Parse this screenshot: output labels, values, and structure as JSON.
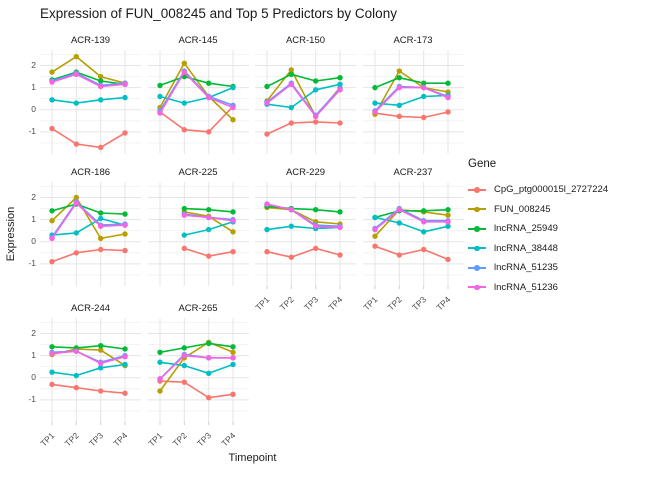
{
  "chart_data": {
    "type": "line",
    "title": "Expression of FUN_008245 and Top 5 Predictors by Colony",
    "xlabel": "Timepoint",
    "ylabel": "Expression",
    "legend_title": "Gene",
    "x_categories": [
      "TP1",
      "TP2",
      "TP3",
      "TP4"
    ],
    "y_ticks": [
      2,
      1,
      0,
      -1
    ],
    "ylim": [
      -2.0,
      2.7
    ],
    "grid": true,
    "legend_position": "right",
    "genes": [
      {
        "label": "CpG_ptg000015l_2727224",
        "color": "#F8766D"
      },
      {
        "label": "FUN_008245",
        "color": "#B79F00"
      },
      {
        "label": "lncRNA_25949",
        "color": "#00BA38"
      },
      {
        "label": "lncRNA_38448",
        "color": "#00BFC4"
      },
      {
        "label": "lncRNA_51235",
        "color": "#619CFF"
      },
      {
        "label": "lncRNA_51236",
        "color": "#F564E3"
      }
    ],
    "facets": [
      {
        "label": "ACR-139",
        "values": [
          [
            -0.85,
            -1.55,
            -1.7,
            -1.05
          ],
          [
            1.7,
            2.4,
            1.5,
            1.2
          ],
          [
            1.35,
            1.7,
            1.3,
            1.15
          ],
          [
            0.45,
            0.3,
            0.45,
            0.55
          ],
          [
            1.3,
            1.65,
            1.1,
            1.2
          ],
          [
            1.25,
            1.6,
            1.05,
            1.15
          ]
        ]
      },
      {
        "label": "ACR-145",
        "values": [
          [
            -0.1,
            -0.9,
            -1.0,
            0.15
          ],
          [
            0.1,
            2.1,
            0.6,
            -0.45
          ],
          [
            1.1,
            1.5,
            1.2,
            1.05
          ],
          [
            0.6,
            0.3,
            0.55,
            1.0
          ],
          [
            -0.05,
            1.75,
            0.6,
            0.2
          ],
          [
            -0.15,
            1.7,
            0.55,
            0.1
          ]
        ]
      },
      {
        "label": "ACR-150",
        "values": [
          [
            -1.1,
            -0.6,
            -0.55,
            -0.6
          ],
          [
            0.4,
            1.8,
            -0.3,
            1.0
          ],
          [
            1.05,
            1.6,
            1.3,
            1.45
          ],
          [
            0.25,
            0.1,
            0.9,
            1.15
          ],
          [
            0.35,
            1.2,
            -0.25,
            0.95
          ],
          [
            0.3,
            1.15,
            -0.3,
            0.9
          ]
        ]
      },
      {
        "label": "ACR-173",
        "values": [
          [
            -0.15,
            -0.3,
            -0.35,
            -0.1
          ],
          [
            -0.2,
            1.75,
            1.0,
            0.8
          ],
          [
            1.0,
            1.45,
            1.2,
            1.2
          ],
          [
            0.3,
            0.2,
            0.6,
            0.65
          ],
          [
            -0.05,
            1.05,
            1.0,
            0.6
          ],
          [
            -0.1,
            1.0,
            1.0,
            0.55
          ]
        ]
      },
      {
        "label": "ACR-186",
        "values": [
          [
            -0.9,
            -0.5,
            -0.35,
            -0.4
          ],
          [
            0.95,
            2.0,
            0.15,
            0.35
          ],
          [
            1.4,
            1.7,
            1.3,
            1.25
          ],
          [
            0.3,
            0.4,
            1.05,
            0.75
          ],
          [
            0.2,
            1.8,
            0.75,
            0.8
          ],
          [
            0.15,
            1.75,
            0.7,
            0.75
          ]
        ]
      },
      {
        "label": "ACR-225",
        "values": [
          [
            null,
            -0.3,
            -0.65,
            -0.45
          ],
          [
            null,
            1.35,
            1.15,
            0.45
          ],
          [
            null,
            1.5,
            1.45,
            1.35
          ],
          [
            null,
            0.3,
            0.55,
            0.9
          ],
          [
            null,
            1.25,
            1.1,
            1.0
          ],
          [
            null,
            1.2,
            1.1,
            0.95
          ]
        ]
      },
      {
        "label": "ACR-229",
        "values": [
          [
            -0.45,
            -0.7,
            -0.3,
            -0.6
          ],
          [
            1.55,
            1.45,
            0.9,
            0.8
          ],
          [
            1.6,
            1.5,
            1.45,
            1.35
          ],
          [
            0.55,
            0.7,
            0.6,
            0.65
          ],
          [
            1.7,
            1.45,
            0.75,
            0.7
          ],
          [
            1.7,
            1.45,
            0.7,
            0.65
          ]
        ]
      },
      {
        "label": "ACR-237",
        "values": [
          [
            -0.2,
            -0.6,
            -0.35,
            -0.8
          ],
          [
            0.25,
            1.45,
            1.35,
            1.2
          ],
          [
            1.1,
            1.4,
            1.4,
            1.45
          ],
          [
            1.1,
            0.85,
            0.45,
            0.7
          ],
          [
            0.6,
            1.5,
            0.95,
            0.95
          ],
          [
            0.55,
            1.45,
            0.9,
            0.9
          ]
        ]
      },
      {
        "label": "ACR-244",
        "values": [
          [
            -0.3,
            -0.45,
            -0.6,
            -0.7
          ],
          [
            1.05,
            1.3,
            1.25,
            0.55
          ],
          [
            1.4,
            1.35,
            1.45,
            1.3
          ],
          [
            0.25,
            0.1,
            0.45,
            0.6
          ],
          [
            1.15,
            1.2,
            0.7,
            1.0
          ],
          [
            1.1,
            1.2,
            0.65,
            0.95
          ]
        ]
      },
      {
        "label": "ACR-265",
        "values": [
          [
            -0.15,
            -0.2,
            -0.9,
            -0.75
          ],
          [
            -0.6,
            0.9,
            1.6,
            1.15
          ],
          [
            1.15,
            1.35,
            1.55,
            1.4
          ],
          [
            0.7,
            0.55,
            0.2,
            0.6
          ],
          [
            -0.05,
            1.05,
            0.9,
            0.9
          ],
          [
            -0.05,
            1.0,
            0.9,
            0.9
          ]
        ]
      }
    ]
  }
}
